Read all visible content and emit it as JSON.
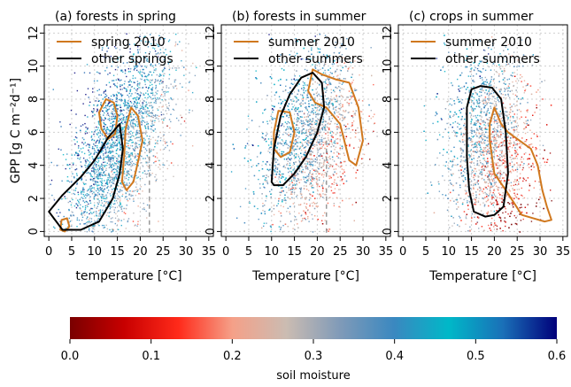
{
  "chart_data": [
    {
      "type": "scatter",
      "title": "(a) forests in spring",
      "xlabel": "temperature [°C]",
      "ylabel": "GPP [g C m⁻²d⁻¹]",
      "xlim": [
        -1,
        36
      ],
      "ylim": [
        -0.3,
        12.5
      ],
      "xticks": [
        0,
        5,
        10,
        15,
        20,
        25,
        30,
        35
      ],
      "yticks": [
        0,
        2,
        4,
        6,
        8,
        10,
        12
      ],
      "grid": true,
      "legend_position": "top-left",
      "vline_x": 22,
      "series": [
        {
          "name": "spring 2010",
          "color": "#d0781e",
          "contours": [
            [
              [
                11,
                7.2
              ],
              [
                11.5,
                6.2
              ],
              [
                13,
                5.6
              ],
              [
                14.5,
                5.9
              ],
              [
                15,
                7.0
              ],
              [
                14.2,
                7.8
              ],
              [
                12.5,
                8.0
              ]
            ],
            [
              [
                16,
                3.0
              ],
              [
                16.5,
                4.6
              ],
              [
                16.8,
                6.2
              ],
              [
                18,
                7.5
              ],
              [
                19.5,
                7.0
              ],
              [
                20.5,
                5.5
              ],
              [
                19.5,
                4.2
              ],
              [
                18.5,
                3.0
              ],
              [
                17,
                2.5
              ]
            ],
            [
              [
                2.5,
                0.1
              ],
              [
                2.8,
                0.7
              ],
              [
                4,
                0.8
              ],
              [
                4.5,
                0.3
              ],
              [
                3.5,
                0.0
              ]
            ]
          ]
        },
        {
          "name": "other springs",
          "color": "#000000",
          "contours": [
            [
              [
                0,
                1.2
              ],
              [
                3,
                2.2
              ],
              [
                7,
                3.3
              ],
              [
                10,
                4.3
              ],
              [
                13,
                5.7
              ],
              [
                15.5,
                6.5
              ],
              [
                16.2,
                5.0
              ],
              [
                15.5,
                3.5
              ],
              [
                14,
                2.0
              ],
              [
                11,
                0.6
              ],
              [
                7,
                0.1
              ],
              [
                3,
                0.1
              ]
            ]
          ]
        }
      ]
    },
    {
      "type": "scatter",
      "title": "(b) forests in summer",
      "xlabel": "Temperature [°C]",
      "xlim": [
        -1,
        36
      ],
      "ylim": [
        -0.3,
        12.5
      ],
      "xticks": [
        0,
        5,
        10,
        15,
        20,
        25,
        30,
        35
      ],
      "yticks": [
        0,
        2,
        4,
        6,
        8,
        10,
        12
      ],
      "grid": true,
      "legend_position": "top-left",
      "vline_x": 22,
      "series": [
        {
          "name": "summer 2010",
          "color": "#d0781e",
          "contours": [
            [
              [
                10.5,
                6.0
              ],
              [
                11.5,
                7.3
              ],
              [
                14,
                7.2
              ],
              [
                15,
                6.0
              ],
              [
                14,
                4.8
              ],
              [
                12,
                4.5
              ],
              [
                10.5,
                5.0
              ]
            ],
            [
              [
                18,
                8.5
              ],
              [
                19,
                9.8
              ],
              [
                21,
                9.5
              ],
              [
                24,
                9.2
              ],
              [
                27,
                9.0
              ],
              [
                29,
                7.5
              ],
              [
                30,
                5.5
              ],
              [
                28.5,
                4.0
              ],
              [
                27,
                4.3
              ],
              [
                25,
                6.5
              ],
              [
                22,
                7.5
              ],
              [
                19.5,
                7.8
              ]
            ]
          ]
        },
        {
          "name": "other summers",
          "color": "#000000",
          "contours": [
            [
              [
                10,
                3.0
              ],
              [
                10.5,
                5.0
              ],
              [
                12,
                7.0
              ],
              [
                14,
                8.3
              ],
              [
                16.5,
                9.3
              ],
              [
                19,
                9.6
              ],
              [
                21,
                9.0
              ],
              [
                21.5,
                7.5
              ],
              [
                20,
                6.0
              ],
              [
                17.5,
                4.5
              ],
              [
                15,
                3.5
              ],
              [
                12.5,
                2.8
              ],
              [
                10.5,
                2.8
              ]
            ]
          ]
        }
      ]
    },
    {
      "type": "scatter",
      "title": "(c) crops in summer",
      "xlabel": "Temperature [°C]",
      "xlim": [
        -1,
        36
      ],
      "ylim": [
        -0.3,
        12.5
      ],
      "xticks": [
        0,
        5,
        10,
        15,
        20,
        25,
        30,
        35
      ],
      "yticks": [
        0,
        2,
        4,
        6,
        8,
        10,
        12
      ],
      "grid": true,
      "legend_position": "top-left",
      "series": [
        {
          "name": "summer 2010",
          "color": "#d0781e",
          "contours": [
            [
              [
                19,
                6.5
              ],
              [
                20,
                7.5
              ],
              [
                21.5,
                6.5
              ],
              [
                23,
                6.0
              ],
              [
                25.5,
                5.5
              ],
              [
                28,
                5.0
              ],
              [
                29.5,
                4.0
              ],
              [
                30.5,
                2.5
              ],
              [
                31.5,
                1.5
              ],
              [
                32.5,
                0.7
              ],
              [
                31,
                0.6
              ],
              [
                26,
                1.0
              ],
              [
                22.5,
                2.5
              ],
              [
                20,
                3.5
              ],
              [
                19,
                5.5
              ]
            ]
          ]
        },
        {
          "name": "other summers",
          "color": "#000000",
          "contours": [
            [
              [
                14,
                7.5
              ],
              [
                15,
                8.6
              ],
              [
                17,
                8.8
              ],
              [
                19.5,
                8.7
              ],
              [
                21.5,
                8.0
              ],
              [
                22.5,
                6.0
              ],
              [
                23,
                3.5
              ],
              [
                22,
                1.5
              ],
              [
                20,
                1.0
              ],
              [
                18,
                0.9
              ],
              [
                15.5,
                1.2
              ],
              [
                14.5,
                2.5
              ],
              [
                14,
                4.5
              ]
            ]
          ]
        }
      ]
    }
  ],
  "colorbar": {
    "label": "soil moisture",
    "ticks": [
      "0.0",
      "0.1",
      "0.2",
      "0.3",
      "0.4",
      "0.5",
      "0.6"
    ],
    "range": [
      0,
      0.6
    ],
    "stops": [
      "#7a0000",
      "#c80000",
      "#ff2a1a",
      "#f5a088",
      "#cbbcb2",
      "#7f9ab8",
      "#3a88c0",
      "#00b8c8",
      "#1a70b8",
      "#00007a"
    ]
  }
}
